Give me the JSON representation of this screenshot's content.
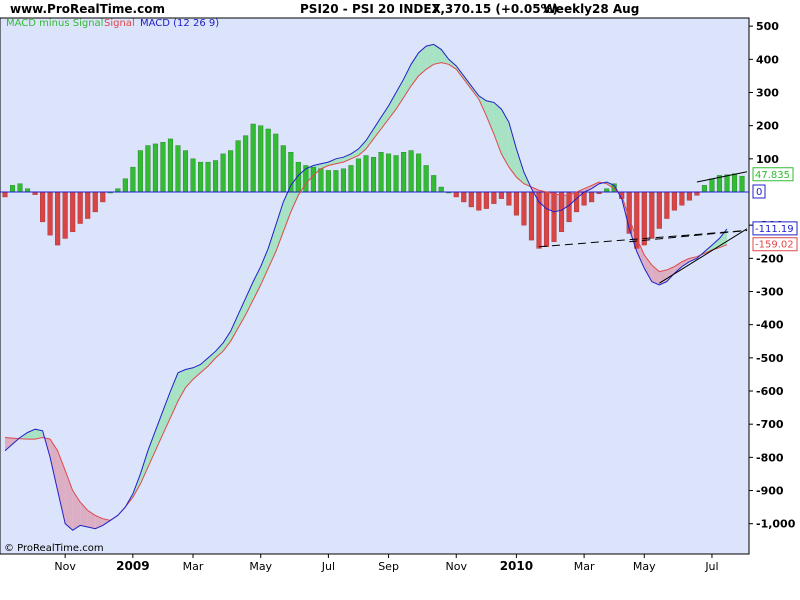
{
  "header": {
    "site": "www.ProRealTime.com",
    "instrument": "PSI20 - PSI 20 INDEX",
    "quote": "7,370.15 (+0.05%)",
    "period": "Weekly",
    "date": "28 Aug"
  },
  "legend": {
    "hist_label": "MACD minus Signal",
    "signal_label": "Signal",
    "macd_label": "MACD (12 26 9)"
  },
  "copyright": "© ProRealTime.com",
  "colors": {
    "plot_bg": "#dbe4fb",
    "macd_line": "#2020c8",
    "signal_line": "#e04848",
    "hist_pos": "#33bb33",
    "hist_neg": "#d94545",
    "fill_above": "#a8e2c4",
    "fill_below": "#dcaec4",
    "trendline": "#000000"
  },
  "badges": {
    "hist_value": "47.835",
    "zero": "0",
    "macd_value": "-111.19",
    "signal_value": "-159.02"
  },
  "chart_data": {
    "type": "line",
    "title": "PSI20 - PSI 20 INDEX MACD (12 26 9)",
    "x_unit": "weeks",
    "x_range": [
      "2008-09",
      "2010-08-28"
    ],
    "ylim": [
      -1050,
      530
    ],
    "y_ticks": [
      500,
      400,
      300,
      200,
      100,
      0,
      -100,
      -200,
      -300,
      -400,
      -500,
      -600,
      -700,
      -800,
      -900,
      -1000
    ],
    "y_tick_labels": [
      "500",
      "400",
      "300",
      "200",
      "100",
      "0",
      "-100",
      "-200",
      "-300",
      "-400",
      "-500",
      "-600",
      "-700",
      "-800",
      "-900",
      "-1,000"
    ],
    "x_tick_labels": [
      {
        "label": "Nov",
        "week": 8,
        "year": false
      },
      {
        "label": "2009",
        "week": 17,
        "year": true
      },
      {
        "label": "Mar",
        "week": 25,
        "year": false
      },
      {
        "label": "May",
        "week": 34,
        "year": false
      },
      {
        "label": "Jul",
        "week": 43,
        "year": false
      },
      {
        "label": "Sep",
        "week": 51,
        "year": false
      },
      {
        "label": "Nov",
        "week": 60,
        "year": false
      },
      {
        "label": "2010",
        "week": 68,
        "year": true
      },
      {
        "label": "Mar",
        "week": 77,
        "year": false
      },
      {
        "label": "May",
        "week": 85,
        "year": false
      },
      {
        "label": "Jul",
        "week": 94,
        "year": false
      }
    ],
    "grid": false,
    "legend_position": "top-left",
    "series": [
      {
        "name": "MACD",
        "values": [
          -780,
          -760,
          -740,
          -725,
          -715,
          -720,
          -800,
          -900,
          -1000,
          -1020,
          -1005,
          -1010,
          -1015,
          -1005,
          -990,
          -975,
          -950,
          -910,
          -850,
          -780,
          -720,
          -660,
          -600,
          -545,
          -535,
          -530,
          -520,
          -500,
          -480,
          -455,
          -420,
          -370,
          -320,
          -270,
          -225,
          -170,
          -100,
          -30,
          20,
          50,
          70,
          80,
          85,
          90,
          100,
          105,
          115,
          130,
          155,
          190,
          225,
          260,
          300,
          340,
          385,
          420,
          440,
          445,
          430,
          400,
          380,
          350,
          320,
          290,
          275,
          270,
          250,
          210,
          130,
          60,
          10,
          -30,
          -50,
          -60,
          -55,
          -40,
          -20,
          0,
          10,
          25,
          30,
          20,
          -20,
          -110,
          -180,
          -230,
          -270,
          -280,
          -270,
          -245,
          -225,
          -210,
          -200,
          -180,
          -160,
          -140,
          -111.19
        ],
        "color": "#2020c8"
      },
      {
        "name": "Signal",
        "values": [
          -740,
          -742,
          -744,
          -745,
          -745,
          -740,
          -745,
          -780,
          -840,
          -900,
          -935,
          -960,
          -975,
          -985,
          -990,
          -975,
          -950,
          -920,
          -880,
          -830,
          -780,
          -730,
          -680,
          -630,
          -590,
          -565,
          -545,
          -525,
          -500,
          -480,
          -450,
          -410,
          -370,
          -325,
          -280,
          -230,
          -180,
          -120,
          -60,
          -10,
          25,
          50,
          70,
          80,
          85,
          90,
          100,
          110,
          130,
          160,
          190,
          220,
          250,
          285,
          320,
          350,
          370,
          385,
          390,
          385,
          370,
          340,
          310,
          280,
          230,
          175,
          115,
          75,
          45,
          25,
          15,
          5,
          0,
          -5,
          -10,
          -10,
          0,
          10,
          20,
          30,
          25,
          10,
          -10,
          -80,
          -140,
          -190,
          -220,
          -240,
          -235,
          -225,
          -210,
          -200,
          -195,
          -185,
          -175,
          -168,
          -159.02
        ],
        "color": "#e04848"
      },
      {
        "name": "MACD minus Signal",
        "type": "bar",
        "values": [
          -15,
          20,
          25,
          10,
          -8,
          -90,
          -130,
          -160,
          -140,
          -120,
          -95,
          -80,
          -60,
          -30,
          0,
          10,
          40,
          75,
          125,
          140,
          145,
          150,
          160,
          140,
          125,
          100,
          90,
          90,
          95,
          115,
          125,
          155,
          170,
          205,
          200,
          190,
          175,
          140,
          120,
          90,
          80,
          75,
          70,
          65,
          65,
          70,
          80,
          100,
          110,
          105,
          120,
          115,
          110,
          120,
          125,
          115,
          80,
          50,
          15,
          0,
          -15,
          -30,
          -45,
          -55,
          -50,
          -35,
          -20,
          -40,
          -70,
          -100,
          -145,
          -170,
          -165,
          -150,
          -120,
          -90,
          -60,
          -40,
          -30,
          -5,
          10,
          25,
          -20,
          -125,
          -170,
          -160,
          -140,
          -110,
          -80,
          -55,
          -40,
          -25,
          -10,
          20,
          40,
          50,
          52,
          55,
          47.835
        ],
        "color": "#33bb33"
      }
    ]
  }
}
